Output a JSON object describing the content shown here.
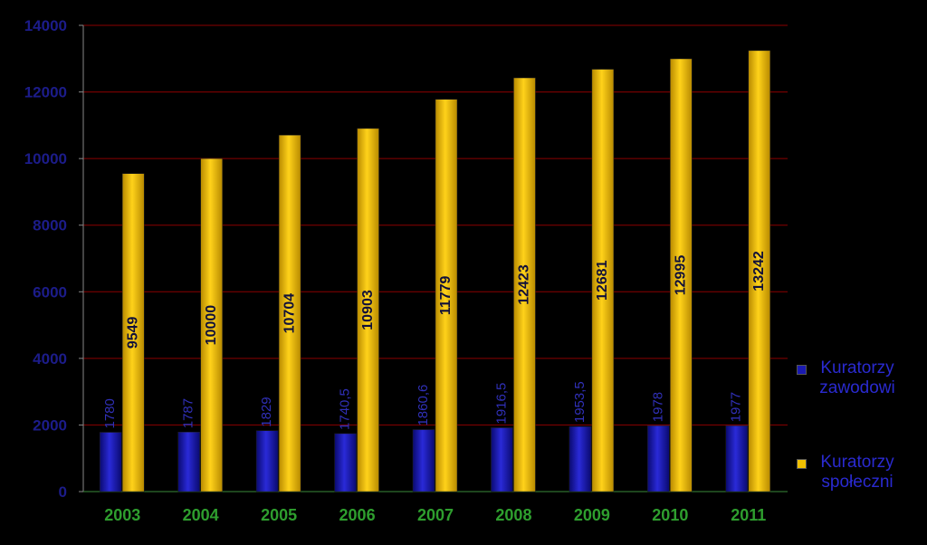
{
  "chart_data": {
    "type": "bar",
    "categories": [
      "2003",
      "2004",
      "2005",
      "2006",
      "2007",
      "2008",
      "2009",
      "2010",
      "2011"
    ],
    "series": [
      {
        "name": "Kuratorzy zawodowi",
        "color": "#1a1ab0",
        "values": [
          1780,
          1787,
          1829,
          1740.5,
          1860.6,
          1916.5,
          1953.5,
          1978,
          1977
        ],
        "value_labels": [
          "1780",
          "1787",
          "1829",
          "1740,5",
          "1860,6",
          "1916,5",
          "1953,5",
          "1978",
          "1977"
        ]
      },
      {
        "name": "Kuratorzy społeczni",
        "color": "#f0c000",
        "values": [
          9549,
          10000,
          10704,
          10903,
          11779,
          12423,
          12681,
          12995,
          13242
        ]
      }
    ],
    "ylim": [
      0,
      14000
    ],
    "yticks": [
      0,
      2000,
      4000,
      6000,
      8000,
      10000,
      12000,
      14000
    ],
    "grid": true
  }
}
